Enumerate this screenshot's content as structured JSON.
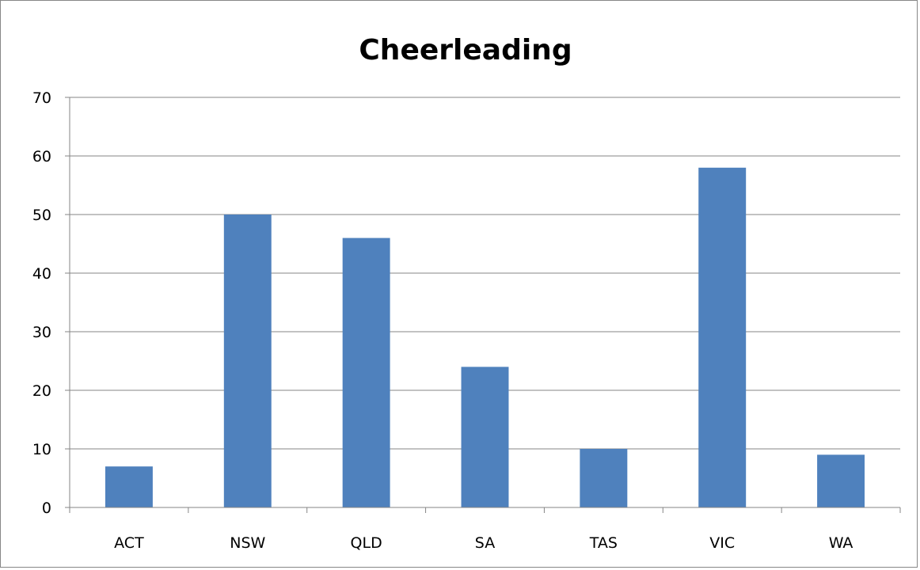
{
  "chart_data": {
    "type": "bar",
    "title": "Cheerleading",
    "xlabel": "",
    "ylabel": "",
    "categories": [
      "ACT",
      "NSW",
      "QLD",
      "SA",
      "TAS",
      "VIC",
      "WA"
    ],
    "values": [
      7,
      50,
      46,
      24,
      10,
      58,
      9
    ],
    "ylim": [
      0,
      70
    ],
    "yticks": [
      0,
      10,
      20,
      30,
      40,
      50,
      60,
      70
    ],
    "grid": true,
    "legend": "none",
    "bar_color": "#4f81bd",
    "grid_color": "#868686"
  }
}
